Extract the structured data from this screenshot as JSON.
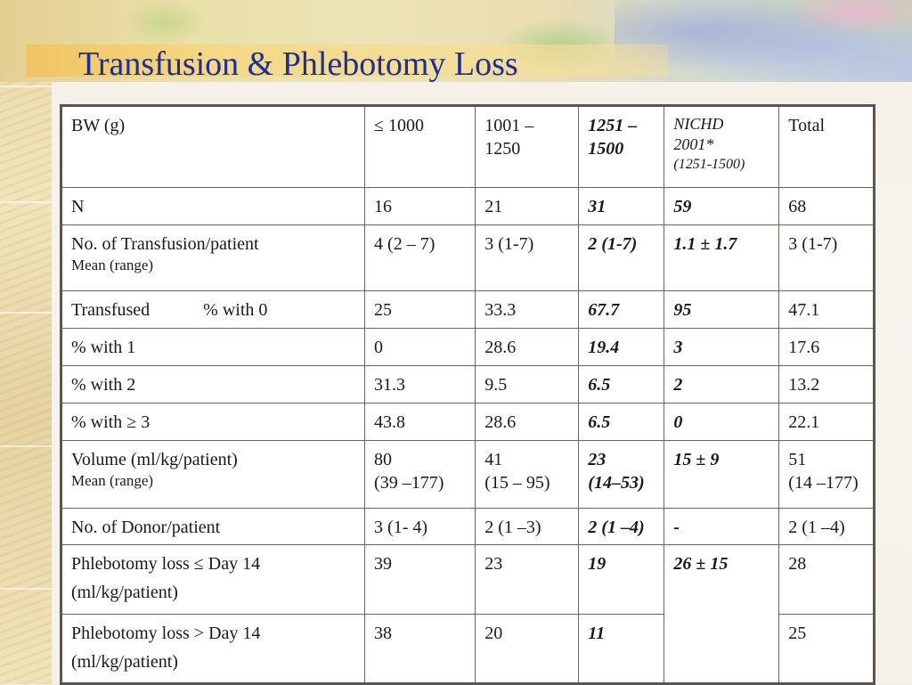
{
  "title": "Transfusion & Phlebotomy Loss",
  "table": {
    "header": {
      "bw": "BW (g)",
      "col1": "≤ 1000",
      "col2_line1": "1001 –",
      "col2_line2": "1250",
      "col3_line1": "1251 –",
      "col3_line2": "1500",
      "col4_line1": "NICHD",
      "col4_line2": "2001*",
      "col4_line3": "(1251-1500)",
      "col5": "Total"
    },
    "rows": {
      "n": {
        "label": "N",
        "v1": "16",
        "v2": "21",
        "v3": "31",
        "v4": "59",
        "v5": "68"
      },
      "transfusion": {
        "label": "No. of Transfusion/patient",
        "sublabel": "Mean (range)",
        "v1": "4 (2 – 7)",
        "v2": "3 (1-7)",
        "v3": "2 (1-7)",
        "v4": "1.1 ± 1.7",
        "v5": "3 (1-7)"
      },
      "with0": {
        "label": "Transfused",
        "sublabel": "% with 0",
        "v1": "25",
        "v2": "33.3",
        "v3": "67.7",
        "v4": "95",
        "v5": "47.1"
      },
      "with1": {
        "sublabel": "% with 1",
        "v1": "0",
        "v2": "28.6",
        "v3": "19.4",
        "v4": "3",
        "v5": "17.6"
      },
      "with2": {
        "sublabel": "% with 2",
        "v1": "31.3",
        "v2": "9.5",
        "v3": "6.5",
        "v4": "2",
        "v5": "13.2"
      },
      "with3": {
        "sublabel": "% with ≥ 3",
        "v1": "43.8",
        "v2": "28.6",
        "v3": "6.5",
        "v4": "0",
        "v5": "22.1"
      },
      "volume": {
        "label": "Volume (ml/kg/patient)",
        "sublabel": "Mean (range)",
        "v1a": "80",
        "v1b": "(39 –177)",
        "v2a": "41",
        "v2b": "(15 – 95)",
        "v3a": "23",
        "v3b": "(14–53)",
        "v4": "15 ± 9",
        "v5a": "51",
        "v5b": "(14 –177)"
      },
      "donor": {
        "label": "No. of Donor/patient",
        "v1": "3 (1- 4)",
        "v2": "2 (1 –3)",
        "v3": "2 (1 –4)",
        "v4": "-",
        "v5": "2 (1 –4)"
      },
      "phleb1": {
        "label_line1": "Phlebotomy loss ≤ Day 14",
        "label_line2": "(ml/kg/patient)",
        "v1": "39",
        "v2": "23",
        "v3": "19",
        "v4": "26 ± 15",
        "v5": "28"
      },
      "phleb2": {
        "label_line1": "Phlebotomy loss > Day 14",
        "label_line2": "(ml/kg/patient)",
        "v1": "38",
        "v2": "20",
        "v3": "11",
        "v5": "25"
      }
    }
  }
}
